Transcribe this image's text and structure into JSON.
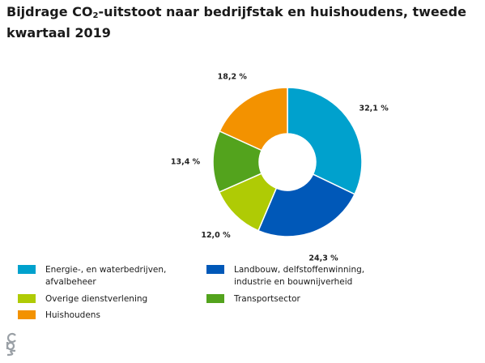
{
  "title": {
    "pre": "Bijdrage CO",
    "sub": "2",
    "post": "-uitstoot naar bedrijfstak en huishoudens, tweede kwartaal 2019"
  },
  "chart_data": {
    "type": "pie",
    "donut": true,
    "value_suffix": " %",
    "slices": [
      {
        "label": "Energie-, en waterbedrijven, afvalbeheer",
        "value": 32.1,
        "display": "32,1 %",
        "color": "#00a1cd"
      },
      {
        "label": "Landbouw, delfstoffenwinning, industrie en bouwnijverheid",
        "value": 24.3,
        "display": "24,3 %",
        "color": "#0058b8"
      },
      {
        "label": "Overige dienstverlening",
        "value": 12.0,
        "display": "12,0 %",
        "color": "#afcb05"
      },
      {
        "label": "Transportsector",
        "value": 13.4,
        "display": "13,4 %",
        "color": "#53a31d"
      },
      {
        "label": "Huishoudens",
        "value": 18.2,
        "display": "18,2 %",
        "color": "#f39200"
      }
    ],
    "legend_position": "bottom"
  },
  "legend": {
    "items": [
      {
        "text": "Energie-, en waterbedrijven, afvalbeheer",
        "color": "#00a1cd"
      },
      {
        "text": "Landbouw, delfstoffenwinning, industrie en bouwnijverheid",
        "color": "#0058b8"
      },
      {
        "text": "Overige dienstverlening",
        "color": "#afcb05"
      },
      {
        "text": "Transportsector",
        "color": "#53a31d"
      },
      {
        "text": "Huishoudens",
        "color": "#f39200"
      }
    ]
  },
  "logo": {
    "icon": "cbs-logo-icon",
    "color": "#9aa0a6"
  }
}
